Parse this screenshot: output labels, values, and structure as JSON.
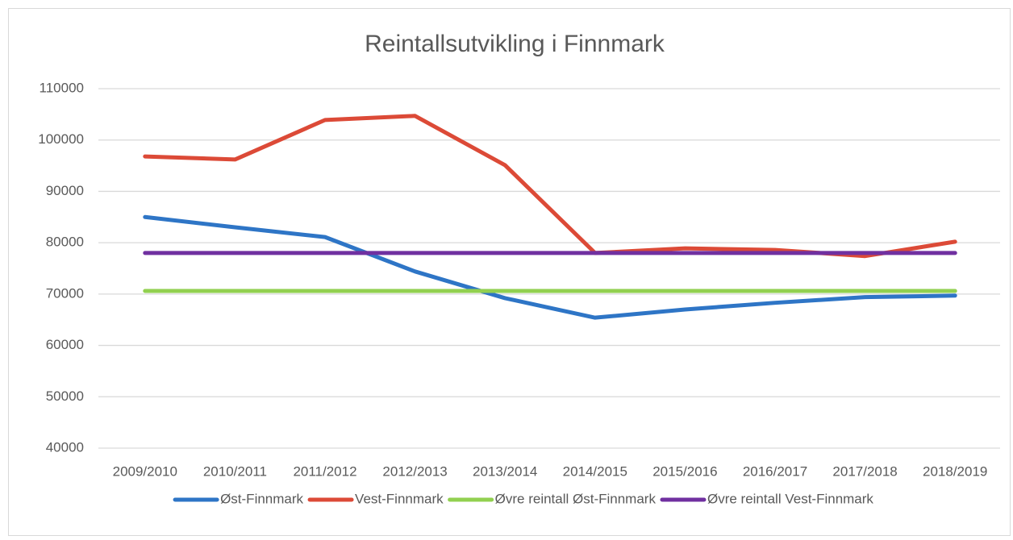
{
  "chart_data": {
    "type": "line",
    "title": "Reintallsutvikling i Finnmark",
    "categories": [
      "2009/2010",
      "2010/2011",
      "2011/2012",
      "2012/2013",
      "2013/2014",
      "2014/2015",
      "2015/2016",
      "2016/2017",
      "2017/2018",
      "2018/2019"
    ],
    "series": [
      {
        "name": "Øst-Finnmark",
        "color": "#2e75c6",
        "values": [
          85000,
          83000,
          81100,
          74400,
          69200,
          65400,
          67000,
          68300,
          69400,
          69700
        ]
      },
      {
        "name": "Vest-Finnmark",
        "color": "#dc4a37",
        "values": [
          96800,
          96200,
          103900,
          104700,
          95100,
          78000,
          78900,
          78600,
          77400,
          80200
        ]
      },
      {
        "name": "Øvre reintall Øst-Finnmark",
        "color": "#92d050",
        "values": [
          70600,
          70600,
          70600,
          70600,
          70600,
          70600,
          70600,
          70600,
          70600,
          70600
        ]
      },
      {
        "name": "Øvre reintall Vest-Finnmark",
        "color": "#7030a0",
        "values": [
          78000,
          78000,
          78000,
          78000,
          78000,
          78000,
          78000,
          78000,
          78000,
          78000
        ]
      }
    ],
    "ylim": [
      40000,
      110000
    ],
    "yticks": [
      40000,
      50000,
      60000,
      70000,
      80000,
      90000,
      100000,
      110000
    ],
    "grid": true,
    "legend": "bottom"
  }
}
